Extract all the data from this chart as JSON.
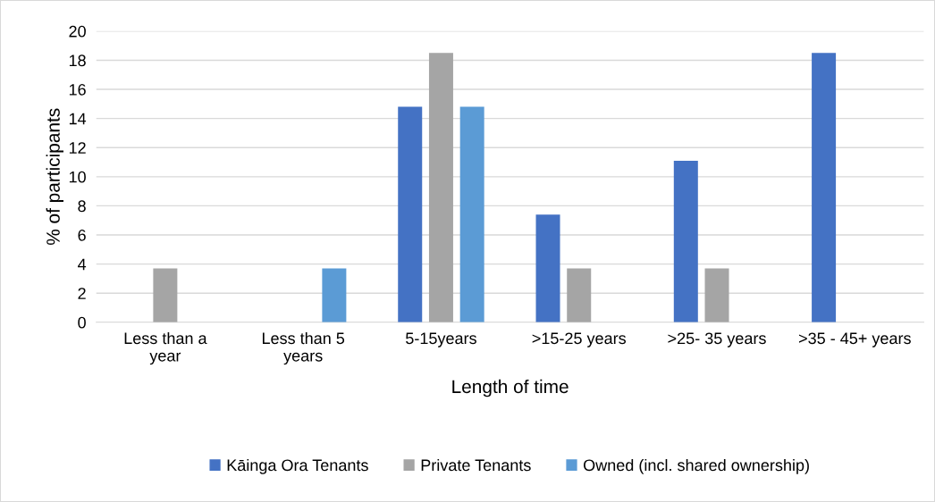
{
  "chart_data": {
    "type": "bar",
    "xlabel": "Length of time",
    "ylabel": "% of participants",
    "categories": [
      "Less than a year",
      "Less than 5 years",
      "5-15years",
      ">15-25 years",
      ">25- 35 years",
      ">35 - 45+ years"
    ],
    "series": [
      {
        "name": "Kāinga Ora Tenants",
        "color": "#4472c4",
        "values": [
          null,
          null,
          14.8,
          7.4,
          11.1,
          18.5
        ]
      },
      {
        "name": "Private Tenants",
        "color": "#a5a5a5",
        "values": [
          3.7,
          null,
          18.5,
          3.7,
          3.7,
          null
        ]
      },
      {
        "name": "Owned (incl. shared ownership)",
        "color": "#5b9bd5",
        "values": [
          null,
          3.7,
          14.8,
          null,
          null,
          null
        ]
      }
    ],
    "ylim": [
      0,
      20
    ],
    "yticks": [
      0,
      2,
      4,
      6,
      8,
      10,
      12,
      14,
      16,
      18,
      20
    ],
    "grid": "y",
    "legend": "bottom"
  }
}
